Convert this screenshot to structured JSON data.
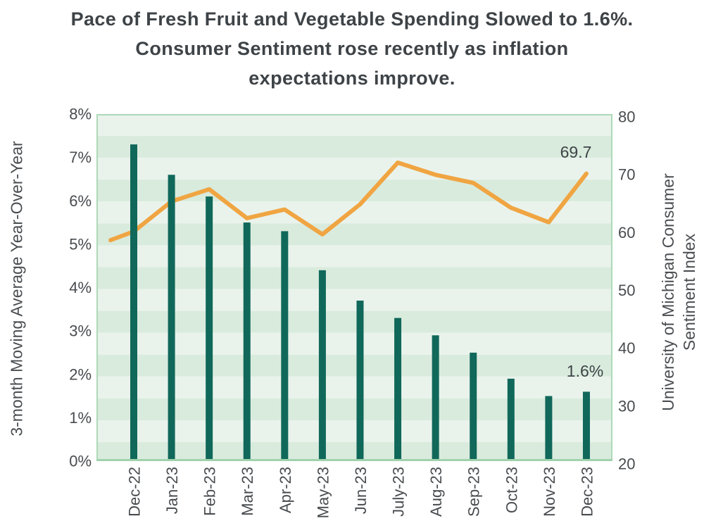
{
  "title": {
    "lines": [
      "Pace of Fresh Fruit and Vegetable Spending Slowed to 1.6%.",
      "Consumer Sentiment rose recently as inflation",
      "expectations improve."
    ]
  },
  "chart_data": {
    "type": "bar",
    "subtype": "combo-bar-line-dual-axis",
    "categories": [
      "Dec-22",
      "Jan-23",
      "Feb-23",
      "Mar-23",
      "Apr-23",
      "May-23",
      "Jun-23",
      "July-23",
      "Aug-23",
      "Sep-23",
      "Oct-23",
      "Nov-23",
      "Dec-23"
    ],
    "series": [
      {
        "name": "3-month Moving Average Year-Over-Year",
        "type": "bar",
        "axis": "left",
        "unit": "%",
        "color": "#10685A",
        "values": [
          7.3,
          6.6,
          6.1,
          5.5,
          5.3,
          4.4,
          3.7,
          3.3,
          2.9,
          2.5,
          1.9,
          1.5,
          1.6
        ]
      },
      {
        "name": "University of Michigan Consumer Sentiment Index",
        "type": "line",
        "axis": "right",
        "color": "#F0A542",
        "values": [
          59.7,
          64.9,
          67.0,
          62.0,
          63.5,
          59.2,
          64.4,
          71.6,
          69.5,
          68.1,
          63.8,
          61.3,
          69.7
        ],
        "edge_start_value": 58.2
      }
    ],
    "left_axis": {
      "title": "3-month Moving Average Year-Over-Year",
      "min": 0,
      "max": 8,
      "ticks": [
        "0%",
        "1%",
        "2%",
        "3%",
        "4%",
        "5%",
        "6%",
        "7%",
        "8%"
      ]
    },
    "right_axis": {
      "title_lines": [
        "University of Michigan Consumer",
        "Sentiment Index"
      ],
      "min": 20,
      "max": 80,
      "ticks": [
        "20",
        "30",
        "40",
        "50",
        "60",
        "70",
        "80"
      ]
    },
    "annotations": [
      {
        "text": "69.7",
        "series": "University of Michigan Consumer Sentiment Index",
        "category": "Dec-23"
      },
      {
        "text": "1.6%",
        "series": "3-month Moving Average Year-Over-Year",
        "category": "Dec-23"
      }
    ],
    "grid": "striped-bands-no-gridlines",
    "legend": "none",
    "plot_style": {
      "stripe_light": "#E9F3EC",
      "stripe_dark": "#D9EBDD",
      "border_color": "#ACD9B7",
      "baseline_color": "#A0D2AD",
      "text_color": "#484C4F"
    }
  }
}
